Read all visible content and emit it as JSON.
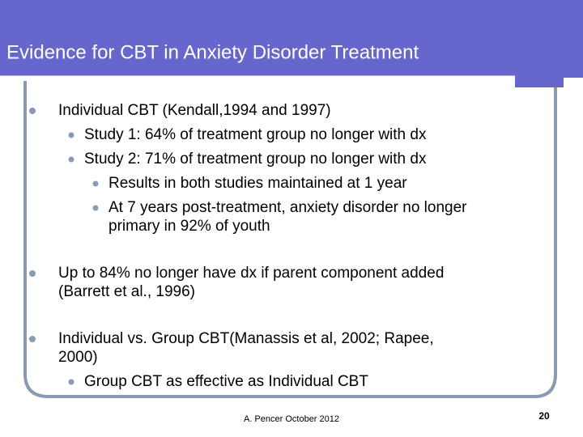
{
  "header": {
    "title": "Evidence for CBT in Anxiety Disorder Treatment"
  },
  "items": [
    {
      "lines": [
        "Individual CBT (Kendall,1994 and 1997)"
      ],
      "children": [
        {
          "lines": [
            "Study 1: 64% of treatment group no longer with dx"
          ]
        },
        {
          "lines": [
            "Study 2: 71% of treatment group no longer with dx"
          ],
          "children": [
            {
              "lines": [
                "Results in both studies maintained at 1 year"
              ]
            },
            {
              "lines": [
                "At 7 years post-treatment, anxiety disorder no longer",
                "primary in 92% of youth"
              ]
            }
          ]
        }
      ]
    },
    {
      "lines": [
        "Up to 84% no longer have dx if parent component added",
        "(Barrett et al., 1996)"
      ]
    },
    {
      "lines": [
        "Individual vs. Group CBT(Manassis et al, 2002; Rapee,",
        "2000)"
      ],
      "children": [
        {
          "lines": [
            "Group CBT as effective as Individual CBT"
          ]
        }
      ]
    }
  ],
  "footer": {
    "text": "A. Pencer October 2012",
    "page": "20"
  }
}
